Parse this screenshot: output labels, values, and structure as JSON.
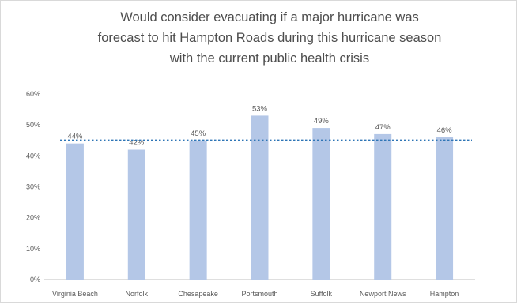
{
  "chart_data": {
    "type": "bar",
    "title_lines": [
      "Would consider evacuating if a major hurricane was",
      "forecast to hit Hampton Roads during this hurricane season",
      "with the current public health crisis"
    ],
    "categories": [
      "Virginia Beach",
      "Norfolk",
      "Chesapeake",
      "Portsmouth",
      "Suffolk",
      "Newport News",
      "Hampton"
    ],
    "values": [
      44,
      42,
      45,
      53,
      49,
      47,
      46
    ],
    "data_labels": [
      "44%",
      "42%",
      "45%",
      "53%",
      "49%",
      "47%",
      "46%"
    ],
    "y_ticks": [
      "0%",
      "10%",
      "20%",
      "30%",
      "40%",
      "50%",
      "60%"
    ],
    "ylim": [
      0,
      60
    ],
    "reference_line": {
      "value": 45,
      "style": "dotted"
    },
    "grid": false,
    "legend": "none",
    "colors": {
      "bar": "#b4c7e7",
      "reference_line": "#2e75b6",
      "text": "#595959",
      "axis": "#bfbfbf"
    }
  }
}
